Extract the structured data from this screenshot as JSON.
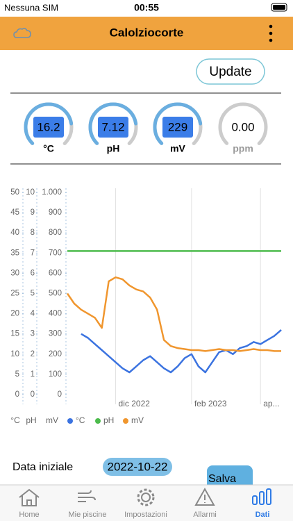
{
  "status_bar": {
    "carrier": "Nessuna SIM",
    "time": "00:55"
  },
  "header": {
    "title": "Calolziocorte"
  },
  "update_button": "Update",
  "gauges": [
    {
      "value": "16.2",
      "unit": "°C"
    },
    {
      "value": "7.12",
      "unit": "pH"
    },
    {
      "value": "229",
      "unit": "mV"
    },
    {
      "value": "0.00",
      "unit": "ppm"
    }
  ],
  "chart_data": {
    "type": "line",
    "categories": [
      null,
      null,
      null,
      null,
      null,
      null,
      null,
      "dic 2022",
      null,
      null,
      null,
      null,
      null,
      null,
      null,
      null,
      null,
      null,
      "feb 2023",
      null,
      null,
      null,
      null,
      null,
      null,
      null,
      null,
      null,
      "ap...",
      null,
      null,
      null
    ],
    "axis_titles": [
      "°C",
      "pH",
      "mV"
    ],
    "series": [
      {
        "name": "°C",
        "color": "#3b73e0",
        "axis": "y",
        "values": [
          null,
          null,
          15,
          14,
          12.5,
          11,
          9.5,
          8,
          6.5,
          5.5,
          7,
          8.5,
          9.5,
          8,
          6.5,
          5.5,
          7,
          9,
          10,
          7,
          5.5,
          8,
          10.5,
          11,
          10,
          11.5,
          12,
          13,
          12.5,
          13.5,
          14.5,
          16
        ]
      },
      {
        "name": "pH",
        "color": "#4cbb4c",
        "axis": "y2",
        "values": [
          7.1,
          7.1,
          7.1,
          7.1,
          7.1,
          7.1,
          7.1,
          7.1,
          7.1,
          7.1,
          7.1,
          7.1,
          7.1,
          7.1,
          7.1,
          7.1,
          7.1,
          7.1,
          7.1,
          7.1,
          7.1,
          7.1,
          7.1,
          7.1,
          7.1,
          7.1,
          7.1,
          7.1,
          7.1,
          7.1,
          7.1,
          7.1
        ]
      },
      {
        "name": "mV",
        "color": "#f0962e",
        "axis": "y3",
        "values": [
          500,
          450,
          420,
          400,
          380,
          330,
          560,
          580,
          570,
          540,
          520,
          510,
          480,
          420,
          270,
          240,
          230,
          225,
          220,
          220,
          215,
          220,
          225,
          220,
          220,
          215,
          220,
          225,
          220,
          220,
          215,
          215
        ]
      }
    ],
    "ylim": [
      0,
      50
    ],
    "yticks": [
      0,
      5,
      10,
      15,
      20,
      25,
      30,
      35,
      40,
      45,
      50
    ],
    "y2lim": [
      0,
      10
    ],
    "y2ticks": [
      0,
      1,
      2,
      3,
      4,
      5,
      6,
      7,
      8,
      9,
      10
    ],
    "y3lim": [
      0,
      1000
    ],
    "y3ticks": [
      0,
      100,
      200,
      300,
      400,
      500,
      600,
      700,
      800,
      900,
      {
        "value": 1000,
        "label": "1.000"
      }
    ]
  },
  "form": {
    "label": "Data iniziale",
    "date": "2022-10-22",
    "save": "Salva"
  },
  "tabs": [
    "Home",
    "Mie piscine",
    "Impostazioni",
    "Allarmi",
    "Dati"
  ]
}
